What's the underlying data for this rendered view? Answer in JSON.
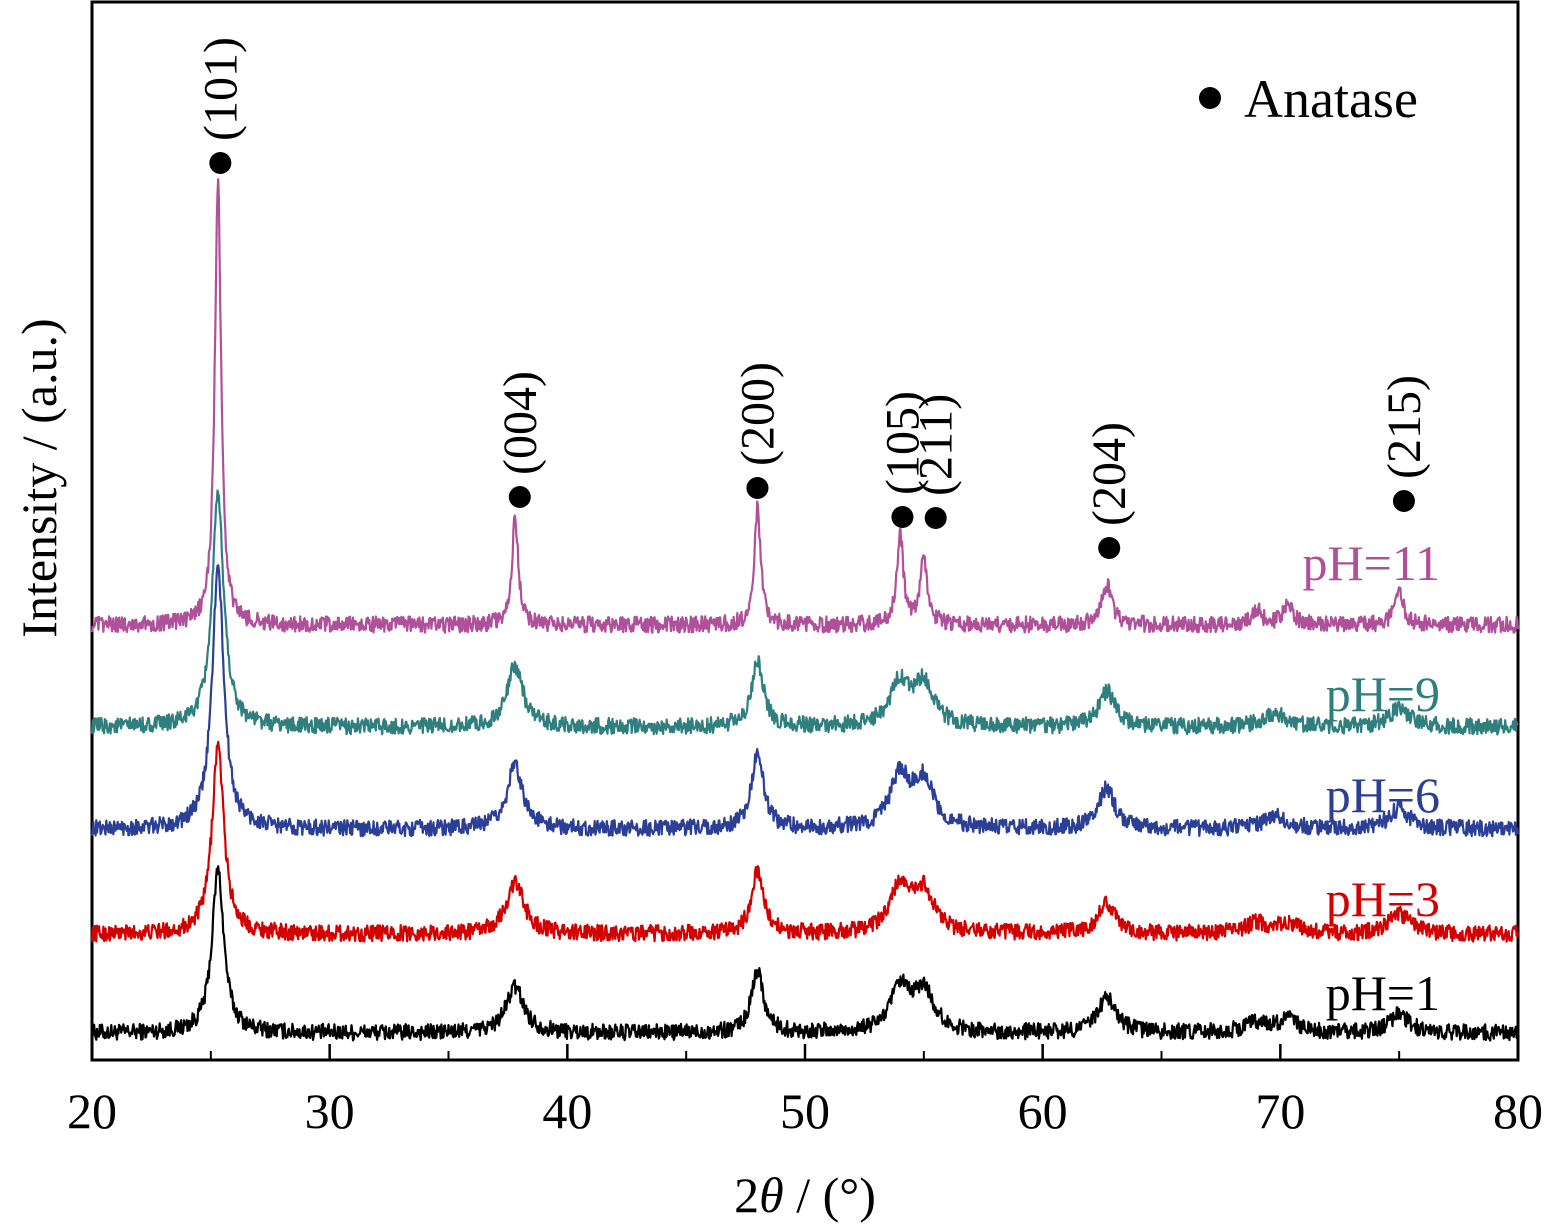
{
  "chart_data": {
    "type": "line",
    "title": "",
    "xlabel_prefix": "2",
    "xlabel_symbol": "θ",
    "xlabel_suffix": " / (°)",
    "ylabel": "Intensity / (a.u.)",
    "xlim": [
      20,
      80
    ],
    "x_major_ticks": [
      20,
      30,
      40,
      50,
      60,
      70,
      80
    ],
    "x_tick_labels": [
      "20",
      "30",
      "40",
      "50",
      "60",
      "70",
      "80"
    ],
    "x_minor_step": 5,
    "y_ticks_shown": false,
    "legend": {
      "marker": "filled-circle",
      "label": "Anatase",
      "position": "top-right"
    },
    "series": [
      {
        "name": "pH=1",
        "color": "#000000",
        "baseline": 1.0,
        "peaks": [
          [
            25.3,
            1.6,
            0.3
          ],
          [
            37.8,
            0.45,
            0.45
          ],
          [
            48.0,
            0.62,
            0.3
          ],
          [
            54.0,
            0.42,
            0.5
          ],
          [
            55.0,
            0.4,
            0.5
          ],
          [
            62.7,
            0.35,
            0.45
          ],
          [
            69.0,
            0.1,
            0.6
          ],
          [
            70.3,
            0.12,
            0.5
          ],
          [
            75.0,
            0.18,
            0.5
          ]
        ]
      },
      {
        "name": "pH=3",
        "color": "#d40000",
        "baseline": 1.97,
        "peaks": [
          [
            25.3,
            1.85,
            0.3
          ],
          [
            37.8,
            0.5,
            0.45
          ],
          [
            48.0,
            0.62,
            0.3
          ],
          [
            54.0,
            0.45,
            0.5
          ],
          [
            55.0,
            0.4,
            0.5
          ],
          [
            62.7,
            0.3,
            0.45
          ],
          [
            69.0,
            0.1,
            0.6
          ],
          [
            70.3,
            0.1,
            0.5
          ],
          [
            75.0,
            0.2,
            0.5
          ]
        ]
      },
      {
        "name": "pH=6",
        "color": "#2b3f96",
        "baseline": 3.0,
        "peaks": [
          [
            25.3,
            2.55,
            0.3
          ],
          [
            37.8,
            0.62,
            0.4
          ],
          [
            48.0,
            0.75,
            0.3
          ],
          [
            54.0,
            0.5,
            0.5
          ],
          [
            55.0,
            0.45,
            0.5
          ],
          [
            62.7,
            0.4,
            0.4
          ],
          [
            69.8,
            0.12,
            0.6
          ],
          [
            75.0,
            0.2,
            0.5
          ]
        ]
      },
      {
        "name": "pH=9",
        "color": "#2f7f7f",
        "baseline": 4.0,
        "peaks": [
          [
            25.3,
            2.25,
            0.3
          ],
          [
            37.8,
            0.6,
            0.4
          ],
          [
            48.0,
            0.65,
            0.3
          ],
          [
            54.0,
            0.42,
            0.5
          ],
          [
            55.0,
            0.4,
            0.5
          ],
          [
            62.7,
            0.35,
            0.4
          ],
          [
            69.8,
            0.12,
            0.6
          ],
          [
            75.0,
            0.18,
            0.5
          ]
        ]
      },
      {
        "name": "pH=11",
        "color": "#b0509a",
        "baseline": 5.0,
        "peaks": [
          [
            25.3,
            4.35,
            0.16
          ],
          [
            37.8,
            1.05,
            0.16
          ],
          [
            48.0,
            1.15,
            0.16
          ],
          [
            54.0,
            0.9,
            0.16
          ],
          [
            55.0,
            0.65,
            0.18
          ],
          [
            62.7,
            0.4,
            0.25
          ],
          [
            69.0,
            0.15,
            0.25
          ],
          [
            70.3,
            0.2,
            0.25
          ],
          [
            75.0,
            0.3,
            0.25
          ]
        ]
      }
    ],
    "reflections": [
      {
        "hkl": "(101)",
        "x": 25.4
      },
      {
        "hkl": "(004)",
        "x": 38.0
      },
      {
        "hkl": "(200)",
        "x": 48.0
      },
      {
        "hkl": "(105)",
        "x": 54.1
      },
      {
        "hkl": "(211)",
        "x": 55.5
      },
      {
        "hkl": "(204)",
        "x": 62.8
      },
      {
        "hkl": "(215)",
        "x": 75.2
      }
    ]
  }
}
